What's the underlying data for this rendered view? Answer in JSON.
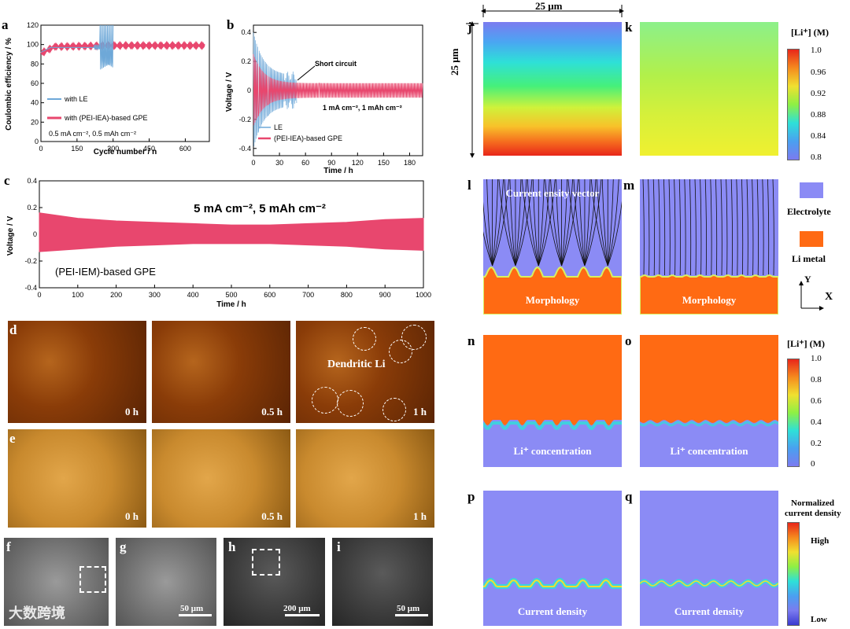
{
  "panels": {
    "a": "a",
    "b": "b",
    "c": "c",
    "d": "d",
    "e": "e",
    "f": "f",
    "g": "g",
    "h": "h",
    "i": "i",
    "j": "j",
    "k": "k",
    "l": "l",
    "m": "m",
    "n": "n",
    "o": "o",
    "p": "p",
    "q": "q"
  },
  "panel_a": {
    "xlabel": "Cycle number / n",
    "ylabel": "Coulombic efficiency / %",
    "legend_le": "with LE",
    "legend_gpe": "with (PEI-IEA)-based GPE",
    "condition": "0.5 mA cm⁻², 0.5 mAh cm⁻²"
  },
  "panel_b": {
    "xlabel": "Time / h",
    "ylabel": "Voltage / V",
    "annotation": "Short circuit",
    "condition": "1 mA cm⁻², 1 mAh cm⁻²",
    "legend_le": "LE",
    "legend_gpe": "(PEI-IEA)-based GPE"
  },
  "panel_c": {
    "xlabel": "Time / h",
    "ylabel": "Voltage / V",
    "condition": "5 mA cm⁻²,  5 mAh cm⁻²",
    "label": "(PEI-IEM)-based GPE"
  },
  "chart_data": [
    {
      "panel": "a",
      "type": "line",
      "title": "",
      "xlabel": "Cycle number / n",
      "ylabel": "Coulombic efficiency / %",
      "xlim": [
        0,
        700
      ],
      "ylim": [
        0,
        120
      ],
      "xticks": [
        0,
        150,
        300,
        450,
        600
      ],
      "yticks": [
        0,
        20,
        40,
        60,
        80,
        100,
        120
      ],
      "series": [
        {
          "name": "with LE",
          "color": "#6ea8d8",
          "x": [
            0,
            50,
            100,
            150,
            200,
            230,
            250,
            260,
            270,
            280,
            290,
            300
          ],
          "y": [
            92,
            96,
            97,
            97,
            97,
            98,
            80,
            120,
            55,
            110,
            60,
            100
          ]
        },
        {
          "name": "with (PEI-IEA)-based GPE",
          "color": "#e8476e",
          "x": [
            0,
            50,
            100,
            200,
            300,
            400,
            500,
            600,
            680
          ],
          "y": [
            91,
            97,
            98,
            98.5,
            99,
            99,
            99,
            99,
            99
          ]
        }
      ]
    },
    {
      "panel": "b",
      "type": "line",
      "title": "",
      "xlabel": "Time / h",
      "ylabel": "Voltage / V",
      "xlim": [
        0,
        195
      ],
      "ylim": [
        -0.45,
        0.45
      ],
      "xticks": [
        0,
        30,
        60,
        90,
        120,
        150,
        180
      ],
      "yticks": [
        -0.4,
        -0.2,
        0.0,
        0.2,
        0.4
      ],
      "series": [
        {
          "name": "LE",
          "color": "#6ea8d8",
          "amplitude_start": 0.3,
          "amplitude_end": 0.1,
          "t_end": 50
        },
        {
          "name": "(PEI-IEA)-based GPE",
          "color": "#e8476e",
          "amplitude_start": 0.2,
          "amplitude_end": 0.05,
          "t_end": 195
        }
      ]
    },
    {
      "panel": "c",
      "type": "line",
      "title": "",
      "xlabel": "Time / h",
      "ylabel": "Voltage / V",
      "xlim": [
        0,
        1000
      ],
      "ylim": [
        -0.4,
        0.4
      ],
      "xticks": [
        0,
        100,
        200,
        300,
        400,
        500,
        600,
        700,
        800,
        900,
        1000
      ],
      "yticks": [
        -0.4,
        -0.2,
        0.0,
        0.2,
        0.4
      ],
      "series": [
        {
          "name": "(PEI-IEM)-based GPE",
          "color": "#e8476e",
          "x": [
            0,
            100,
            200,
            300,
            400,
            500,
            600,
            700,
            800,
            900,
            1000
          ],
          "upper": [
            0.16,
            0.12,
            0.1,
            0.09,
            0.08,
            0.07,
            0.07,
            0.08,
            0.09,
            0.11,
            0.12
          ],
          "lower": [
            -0.13,
            -0.11,
            -0.09,
            -0.08,
            -0.07,
            -0.07,
            -0.07,
            -0.08,
            -0.09,
            -0.11,
            -0.12
          ]
        }
      ]
    }
  ],
  "photos": {
    "d": [
      "0 h",
      "0.5 h",
      "1 h"
    ],
    "d_note": "Dendritic Li",
    "e": [
      "0 h",
      "0.5 h",
      "1 h"
    ],
    "g_scale": "50 μm",
    "h_scale": "200 μm",
    "i_scale": "50 μm",
    "watermark": "大数跨境"
  },
  "sim": {
    "size_x": "25 μm",
    "size_y": "25 μm",
    "l_caption": "Morphology",
    "m_caption": "Morphology",
    "l_title": "Current ensity vector",
    "n_caption": "Li⁺ concentration",
    "o_caption": "Li⁺ concentration",
    "p_caption": "Current density",
    "q_caption": "Current density",
    "cb1_title": "[Li⁺] (M)",
    "cb1_ticks": [
      "1.0",
      "0.96",
      "0.92",
      "0.88",
      "0.84",
      "0.8"
    ],
    "legend_electrolyte": "Electrolyte",
    "legend_li": "Li metal",
    "axis_y": "Y",
    "axis_x": "X",
    "cb2_title": "[Li⁺] (M)",
    "cb2_ticks": [
      "1.0",
      "0.8",
      "0.6",
      "0.4",
      "0.2",
      "0"
    ],
    "cb3_title_1": "Normalized",
    "cb3_title_2": "current density",
    "cb3_high": "High",
    "cb3_low": "Low",
    "colors": {
      "electrolyte": "#8b8bf5",
      "li_metal": "#ff6a13"
    }
  }
}
